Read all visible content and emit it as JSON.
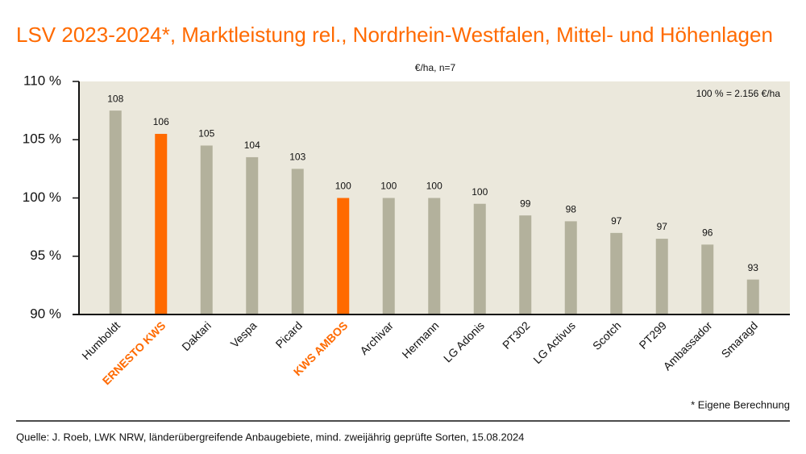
{
  "chart_data": {
    "type": "bar",
    "title": "LSV 2023-2024*, Marktleistung rel., Nordrhein-Westfalen, Mittel- und Höhenlagen",
    "subtitle": "€/ha, n=7",
    "annotation": "100 % = 2.156 €/ha",
    "footnote": "* Eigene Berechnung",
    "source": "Quelle: J. Roeb, LWK NRW, länderübergreifende Anbaugebiete, mind. zweijährig geprüfte Sorten, 15.08.2024",
    "categories": [
      "Humboldt",
      "ERNESTO KWS",
      "Daktari",
      "Vespa",
      "Picard",
      "KWS AMBOS",
      "Archivar",
      "Hermann",
      "LG Adonis",
      "PT302",
      "LG Activus",
      "Scotch",
      "PT299",
      "Ambassador",
      "Smaragd"
    ],
    "values": [
      107.5,
      105.5,
      104.5,
      103.5,
      102.5,
      100,
      100,
      100,
      99.5,
      98.5,
      98,
      97,
      96.5,
      96,
      93
    ],
    "value_labels": [
      "108",
      "106",
      "105",
      "104",
      "103",
      "100",
      "100",
      "100",
      "100",
      "99",
      "98",
      "97",
      "97",
      "96",
      "93"
    ],
    "color": "#b3b19c",
    "colors": [
      "#b3b19c",
      "#ff6a00",
      "#b3b19c",
      "#b3b19c",
      "#b3b19c",
      "#ff6a00",
      "#b3b19c",
      "#b3b19c",
      "#b3b19c",
      "#b3b19c",
      "#b3b19c",
      "#b3b19c",
      "#b3b19c",
      "#b3b19c",
      "#b3b19c"
    ],
    "ylim": [
      90,
      110
    ],
    "yticks": [
      {
        "value": 90,
        "label": "90 %"
      },
      {
        "value": 95,
        "label": "95 %"
      },
      {
        "value": 100,
        "label": "100 %"
      },
      {
        "value": 105,
        "label": "105 %"
      },
      {
        "value": 110,
        "label": "110 %"
      }
    ]
  }
}
